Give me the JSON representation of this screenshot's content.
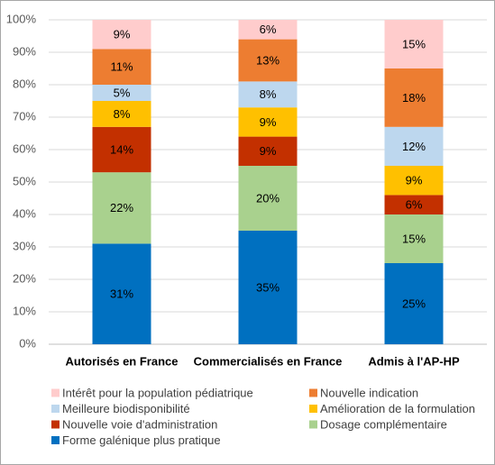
{
  "chart_data": {
    "type": "stacked_bar_100",
    "categories": [
      "Autorisés en France",
      "Commercialisés en France",
      "Admis à l'AP-HP"
    ],
    "series": [
      {
        "name": "Forme galénique plus pratique",
        "color": "#0070C0",
        "values": [
          31,
          35,
          25
        ],
        "value_labels": [
          "31%",
          "35%",
          "25%"
        ]
      },
      {
        "name": "Dosage complémentaire",
        "color": "#A9D18E",
        "values": [
          22,
          20,
          15
        ],
        "value_labels": [
          "22%",
          "20%",
          "15%"
        ]
      },
      {
        "name": "Nouvelle voie d'administration",
        "color": "#C33000",
        "values": [
          14,
          9,
          6
        ],
        "value_labels": [
          "14%",
          "9%",
          "6%"
        ]
      },
      {
        "name": "Amélioration de la formulation",
        "color": "#FFC000",
        "values": [
          8,
          9,
          9
        ],
        "value_labels": [
          "8%",
          "9%",
          "9%"
        ]
      },
      {
        "name": "Meilleure biodisponibilité",
        "color": "#BDD7EE",
        "values": [
          5,
          8,
          12
        ],
        "value_labels": [
          "5%",
          "8%",
          "12%"
        ]
      },
      {
        "name": "Nouvelle indication",
        "color": "#ED7D31",
        "values": [
          11,
          13,
          18
        ],
        "value_labels": [
          "11%",
          "13%",
          "18%"
        ]
      },
      {
        "name": "Intérêt pour la population pédiatrique",
        "color": "#FFCCCC",
        "values": [
          9,
          6,
          15
        ],
        "value_labels": [
          "9%",
          "6%",
          "15%"
        ]
      }
    ],
    "ylim": [
      0,
      100
    ],
    "yticks": [
      {
        "value": 0,
        "label": "0%"
      },
      {
        "value": 10,
        "label": "10%"
      },
      {
        "value": 20,
        "label": "20%"
      },
      {
        "value": 30,
        "label": "30%"
      },
      {
        "value": 40,
        "label": "40%"
      },
      {
        "value": 50,
        "label": "50%"
      },
      {
        "value": 60,
        "label": "60%"
      },
      {
        "value": 70,
        "label": "70%"
      },
      {
        "value": 80,
        "label": "80%"
      },
      {
        "value": 90,
        "label": "90%"
      },
      {
        "value": 100,
        "label": "100%"
      }
    ],
    "grid": true,
    "legend": "bottom"
  }
}
